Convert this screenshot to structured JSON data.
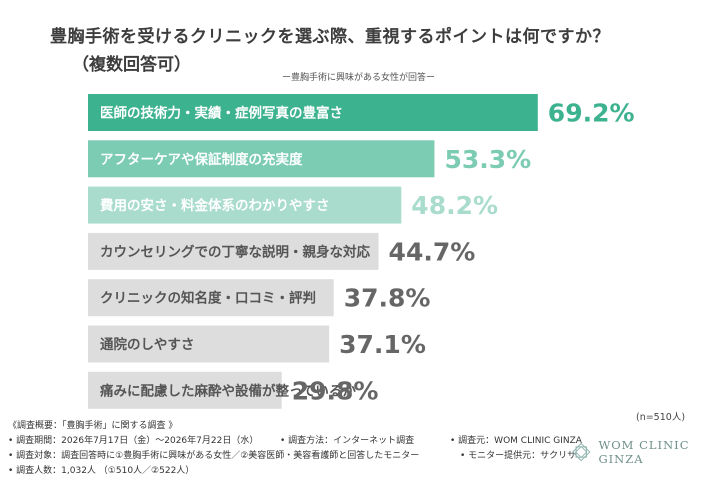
{
  "header": {
    "title": "豊胸手術を受けるクリニックを選ぶ際、重視するポイントは何ですか？",
    "subtitle": "（複数回答可）",
    "respondents": "ー豊胸手術に興味がある女性が回答ー"
  },
  "chart_data": {
    "type": "bar",
    "orientation": "horizontal",
    "title": "豊胸手術を受けるクリニックを選ぶ際、重視するポイントは何ですか？",
    "xlim": [
      0,
      100
    ],
    "value_unit": "%",
    "categories": [
      "医師の技術力・実績・症例写真の豊富さ",
      "アフターケアや保証制度の充実度",
      "費用の安さ・料金体系のわかりやすさ",
      "カウンセリングでの丁寧な説明・親身な対応",
      "クリニックの知名度・口コミ・評判",
      "通院のしやすさ",
      "痛みに配慮した麻酔や設備が整っているか"
    ],
    "values": [
      69.2,
      53.3,
      48.2,
      44.7,
      37.8,
      37.1,
      29.8
    ],
    "value_labels": [
      "69.2%",
      "53.3%",
      "48.2%",
      "44.7%",
      "37.8%",
      "37.1%",
      "29.8%"
    ],
    "bar_colors": [
      "#3db28f",
      "#7ccbb3",
      "#a9dccd",
      "#dddddd",
      "#dddddd",
      "#dddddd",
      "#dddddd"
    ],
    "label_colors": [
      "#ffffff",
      "#ffffff",
      "#ffffff",
      "#555555",
      "#555555",
      "#555555",
      "#555555"
    ],
    "value_colors": [
      "#3db28f",
      "#7ccbb3",
      "#a9dccd",
      "#666666",
      "#666666",
      "#666666",
      "#666666"
    ]
  },
  "notes": {
    "n": "(n=510人)"
  },
  "footer": {
    "heading": "《調査概要：「豊胸手術」に関する調査 》",
    "period": "• 調査期間：2026年7月17日（金）〜2026年7月22日（水）",
    "method": "• 調査方法：インターネット調査",
    "source": "• 調査元：WOM CLINIC GINZA",
    "target": "• 調査対象：調査回答時に①豊胸手術に興味がある女性／②美容医師・美容看護師と回答したモニター",
    "provider": "• モニター提供元：サクリサ",
    "count": "• 調査人数：1,032人 （①510人／②522人）"
  },
  "logo": {
    "text": "WOM CLINIC GINZA",
    "icon": "wom-clinic-logo-icon",
    "color": "#6f8f8a"
  }
}
